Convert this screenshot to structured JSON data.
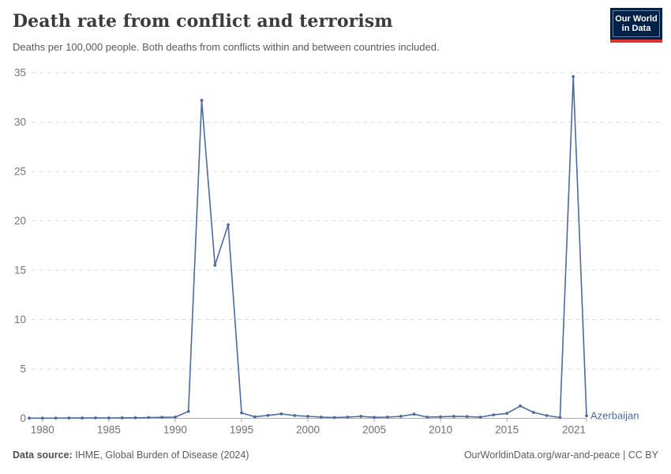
{
  "header": {
    "title": "Death rate from conflict and terrorism",
    "subtitle": "Deaths per 100,000 people. Both deaths from conflicts within and between countries included.",
    "logo": {
      "line1": "Our World",
      "line2": "in Data"
    }
  },
  "chart_data": {
    "type": "line",
    "title": "Death rate from conflict and terrorism",
    "x": [
      1979,
      1980,
      1981,
      1982,
      1983,
      1984,
      1985,
      1986,
      1987,
      1988,
      1989,
      1990,
      1991,
      1992,
      1993,
      1994,
      1995,
      1996,
      1997,
      1998,
      1999,
      2000,
      2001,
      2002,
      2003,
      2004,
      2005,
      2006,
      2007,
      2008,
      2009,
      2010,
      2011,
      2012,
      2013,
      2014,
      2015,
      2016,
      2017,
      2018,
      2019,
      2020,
      2021
    ],
    "series": [
      {
        "name": "Azerbaijan",
        "color": "#4C6A9C",
        "values": [
          0.02,
          0.02,
          0.02,
          0.03,
          0.03,
          0.04,
          0.04,
          0.05,
          0.05,
          0.08,
          0.1,
          0.12,
          0.7,
          32.2,
          15.5,
          19.6,
          0.55,
          0.15,
          0.3,
          0.45,
          0.28,
          0.2,
          0.12,
          0.08,
          0.12,
          0.2,
          0.1,
          0.12,
          0.2,
          0.42,
          0.12,
          0.15,
          0.2,
          0.18,
          0.12,
          0.35,
          0.5,
          1.25,
          0.6,
          0.28,
          0.08,
          34.6,
          0.25
        ]
      }
    ],
    "xlabel": "",
    "ylabel": "",
    "ylim": [
      0,
      35
    ],
    "yticks": [
      0,
      5,
      10,
      15,
      20,
      25,
      30,
      35
    ],
    "xticks": [
      1980,
      1985,
      1990,
      1995,
      2000,
      2005,
      2010,
      2015,
      2021
    ],
    "grid": "horizontal-dashed",
    "legend_position": "end-of-line",
    "entity_label": "Azerbaijan",
    "markers": true
  },
  "footer": {
    "source_label": "Data source:",
    "source_value": "IHME, Global Burden of Disease (2024)",
    "right_text": "OurWorldinData.org/war-and-peace | CC BY"
  },
  "colors": {
    "line": "#4C6A9C",
    "entity_label": "#4C6A9C",
    "gridline": "#dedede",
    "axis": "#a8a8a8",
    "tick_label": "#6f6f6f",
    "y_tick_label": "#757575",
    "logo_bg": "#002147",
    "logo_red": "#dc352d",
    "title_text": "#3b3b3b",
    "subtitle_text": "#555a5f",
    "footer_text": "#5b5b5b"
  }
}
